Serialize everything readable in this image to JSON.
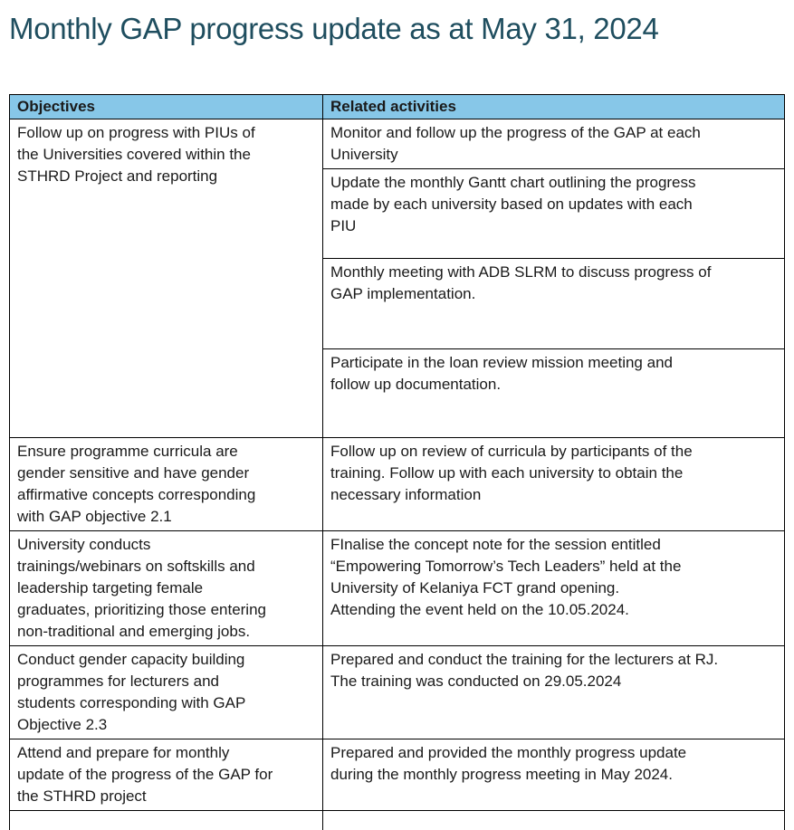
{
  "page": {
    "title": "Monthly GAP progress update as at May 31, 2024"
  },
  "colors": {
    "title_text": "#1F4E5F",
    "header_background": "#87C7E8",
    "body_text": "#1A1A1A",
    "table_border": "#000000",
    "page_background": "#FFFFFF"
  },
  "table": {
    "header": {
      "objectives": "Objectives",
      "activities": "Related activities"
    },
    "rows": [
      {
        "objective": "Follow up on progress with PIUs of\nthe Universities covered within the\nSTHRD Project and reporting",
        "activities": [
          "Monitor and follow up the progress of the GAP at each\nUniversity",
          "Update the monthly Gantt chart outlining the progress\nmade by each university based on updates with each\nPIU",
          "Monthly meeting with ADB SLRM to discuss progress of\nGAP implementation.",
          "Participate in the loan review mission meeting and\nfollow up documentation."
        ]
      },
      {
        "objective": "Ensure programme curricula are\ngender sensitive and have gender\naffirmative concepts corresponding\nwith GAP objective 2.1",
        "activities": [
          "Follow up on review of curricula by participants of the\ntraining. Follow up with each university to obtain the\nnecessary information"
        ]
      },
      {
        "objective": "University conducts\ntrainings/webinars on softskills and\nleadership targeting female\ngraduates, prioritizing those entering\nnon-traditional and emerging jobs.",
        "activities": [
          "FInalise the concept note for the session entitled\n“Empowering Tomorrow’s Tech Leaders” held at the\nUniversity of Kelaniya FCT grand opening.\nAttending the event held on the 10.05.2024."
        ]
      },
      {
        "objective": "Conduct gender capacity building\nprogrammes for lecturers and\nstudents corresponding with GAP\nObjective 2.3",
        "activities": [
          "Prepared and conduct the training for the lecturers at RJ.\nThe training was conducted on 29.05.2024"
        ]
      },
      {
        "objective": "Attend and prepare for monthly\nupdate of the progress of the GAP for\nthe STHRD project",
        "activities": [
          "Prepared and provided the monthly progress update\nduring the monthly progress meeting in May 2024."
        ]
      },
      {
        "objective": "",
        "activities": [
          ""
        ]
      }
    ]
  }
}
